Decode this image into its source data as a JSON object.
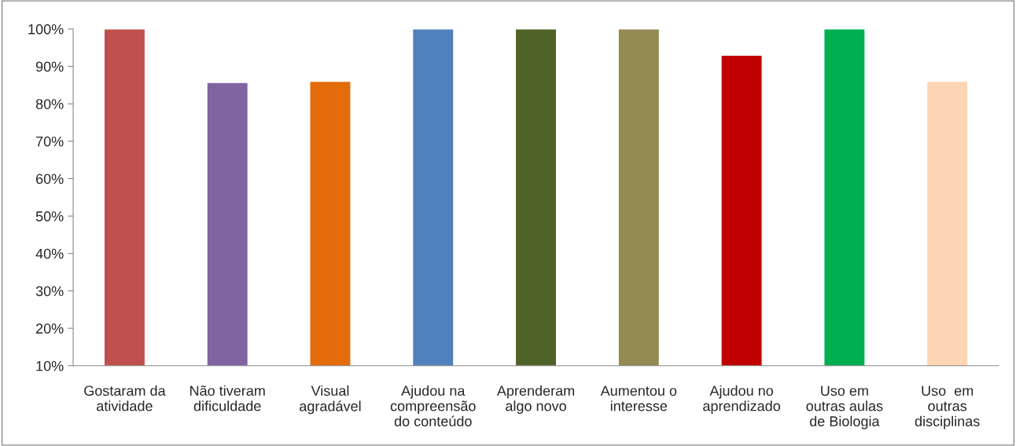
{
  "chart_data": {
    "type": "bar",
    "categories": [
      "Gostaram da\natividade",
      "Não tiveram\ndificuldade",
      "Visual\nagradável",
      "Ajudou na\ncompreensão\ndo conteúdo",
      "Aprenderam\nalgo novo",
      "Aumentou o\ninteresse",
      "Ajudou no\naprendizado",
      "Uso em\noutras aulas\nde Biologia",
      "Uso  em\noutras\ndisciplinas"
    ],
    "values": [
      100,
      85.7,
      86,
      100,
      100,
      100,
      93,
      100,
      86
    ],
    "colors": [
      "#c0504d",
      "#8064a2",
      "#e46c0a",
      "#4f81bd",
      "#4f6228",
      "#948a54",
      "#c00000",
      "#00b050",
      "#fcd5b5"
    ],
    "ylim": [
      10,
      100
    ],
    "yticks": [
      {
        "value": 10,
        "label": "10%"
      },
      {
        "value": 20,
        "label": "20%"
      },
      {
        "value": 30,
        "label": "30%"
      },
      {
        "value": 40,
        "label": "40%"
      },
      {
        "value": 50,
        "label": "50%"
      },
      {
        "value": 60,
        "label": "60%"
      },
      {
        "value": 70,
        "label": "70%"
      },
      {
        "value": 80,
        "label": "80%"
      },
      {
        "value": 90,
        "label": "90%"
      },
      {
        "value": 100,
        "label": "100%"
      }
    ],
    "grid": false,
    "legend": false
  }
}
